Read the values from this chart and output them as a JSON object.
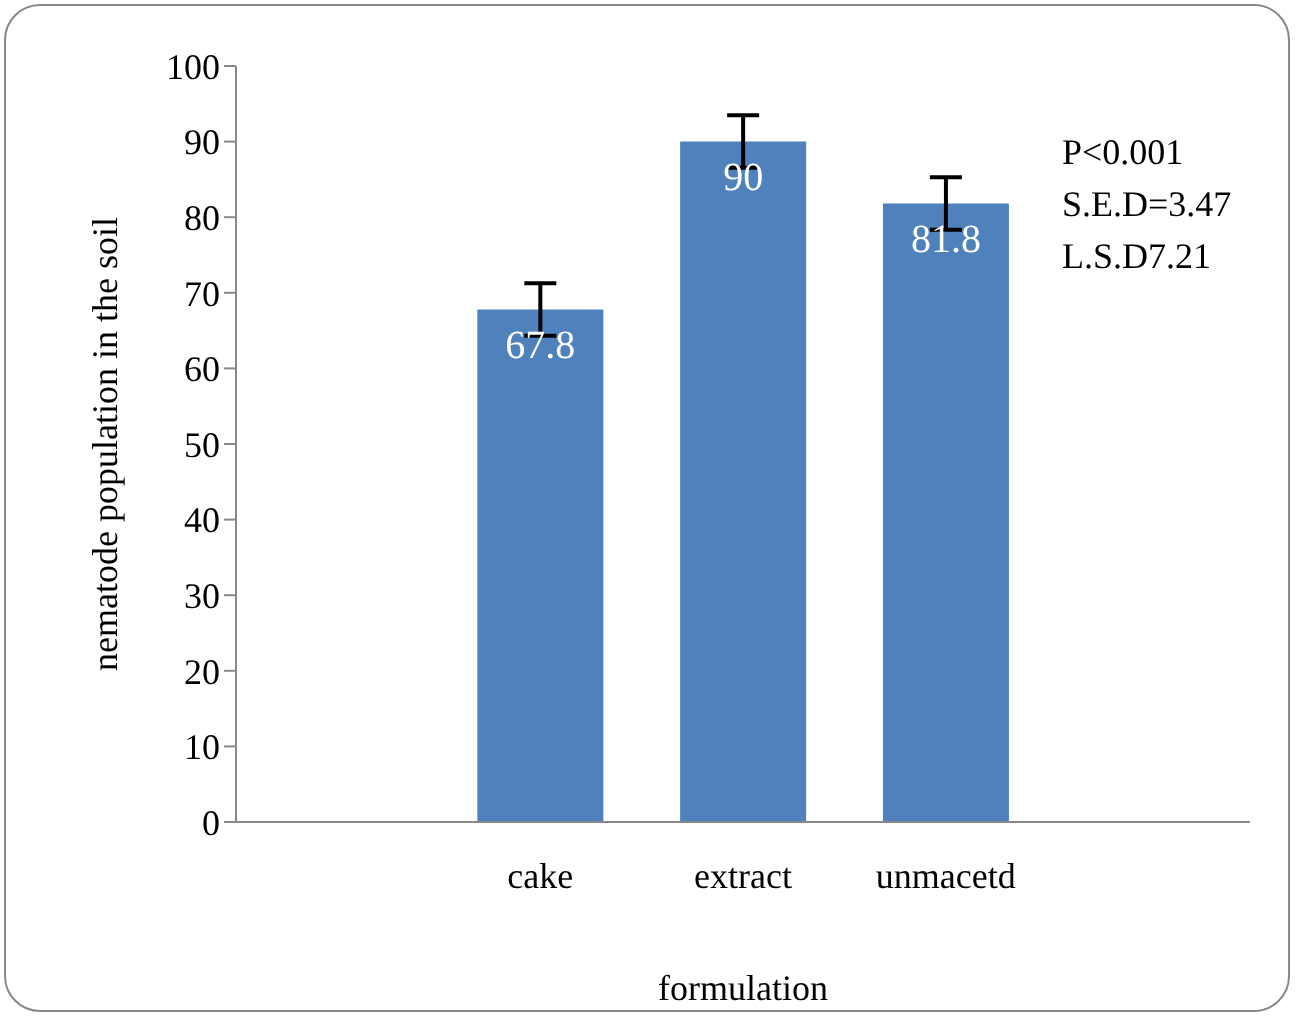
{
  "chart_data": {
    "type": "bar",
    "xlabel": "formulation",
    "ylabel": "nematode population in the soil",
    "categories": [
      null,
      "cake",
      "extract",
      "unmacetd",
      null
    ],
    "values": [
      null,
      67.8,
      90,
      81.8,
      null
    ],
    "errors": [
      null,
      3.47,
      3.47,
      3.47,
      null
    ],
    "color": "#4f81bd",
    "data_labels": true,
    "ylim": [
      0,
      100
    ],
    "yticks": [
      0,
      10,
      20,
      30,
      40,
      50,
      60,
      70,
      80,
      90,
      100
    ],
    "grid": false,
    "annotations": [
      "P<0.001",
      "S.E.D=3.47",
      "L.S.D7.21"
    ]
  }
}
